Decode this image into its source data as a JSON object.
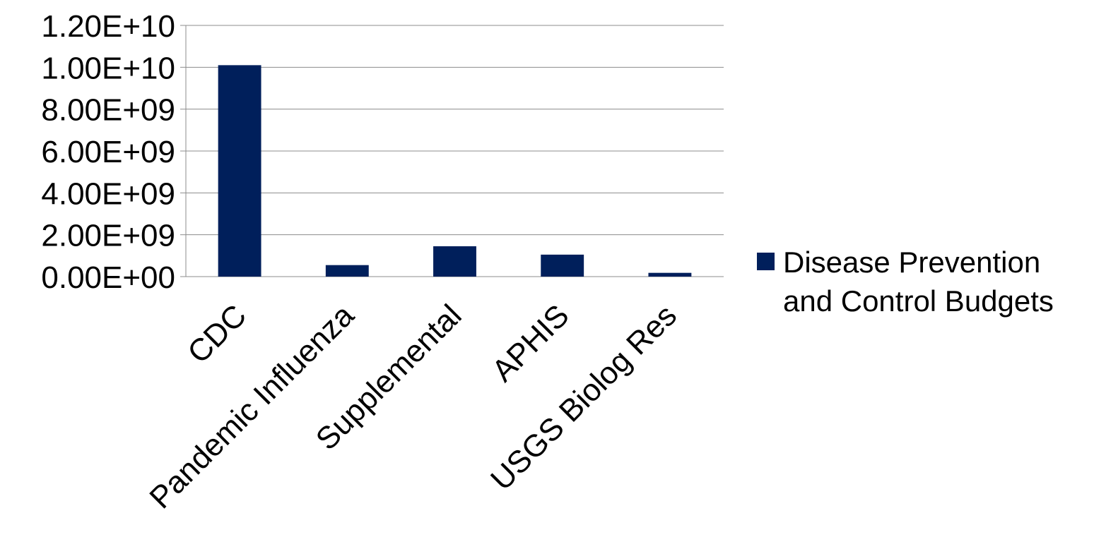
{
  "chart_data": {
    "type": "bar",
    "categories": [
      "CDC",
      "Pandemic Influenza",
      "Supplemental",
      "APHIS",
      "USGS Biolog Res"
    ],
    "series": [
      {
        "name": "Disease Prevention and Control Budgets",
        "values": [
          10100000000,
          550000000,
          1450000000,
          1050000000,
          180000000
        ],
        "color": "#001f5b"
      }
    ],
    "ylim": [
      0,
      12000000000
    ],
    "yticks": [
      0,
      2000000000,
      4000000000,
      6000000000,
      8000000000,
      10000000000,
      12000000000
    ],
    "ytick_labels": [
      "0.00E+00",
      "2.00E+09",
      "4.00E+09",
      "6.00E+09",
      "8.00E+09",
      "1.00E+10",
      "1.20E+10"
    ],
    "grid": true,
    "legend_position": "right",
    "legend_lines": [
      "Disease Prevention",
      "and Control Budgets"
    ],
    "xlabel": "",
    "ylabel": "",
    "title": ""
  }
}
